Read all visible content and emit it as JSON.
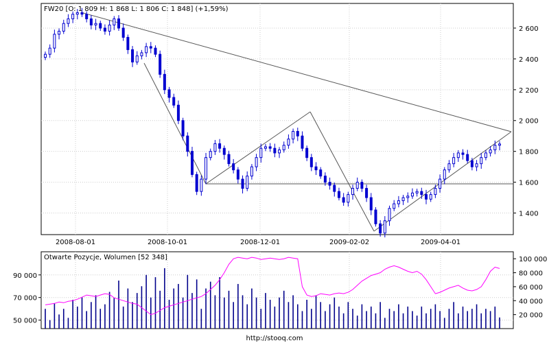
{
  "chart_data": [
    {
      "type": "candlestick",
      "title": "FW20 [O: 1 809  H: 1 868  L: 1 806  C: 1 848] (+1,59%)",
      "x_ticks": [
        "2008-08-01",
        "2008-10-01",
        "2008-12-01",
        "2009-02-02",
        "2009-04-01"
      ],
      "y_ticks": [
        "1 400",
        "1 600",
        "1 800",
        "2 000",
        "2 200",
        "2 400",
        "2 600"
      ],
      "y_tick_values": [
        1400,
        1600,
        1800,
        2000,
        2200,
        2400,
        2600
      ],
      "ylim": [
        1260,
        2760
      ],
      "grid": true,
      "series": [
        {
          "color": "#0000d0",
          "close": [
            2430,
            2470,
            2560,
            2580,
            2630,
            2660,
            2690,
            2700,
            2690,
            2660,
            2620,
            2630,
            2600,
            2580,
            2620,
            2660,
            2600,
            2540,
            2460,
            2380,
            2420,
            2440,
            2480,
            2470,
            2430,
            2300,
            2200,
            2150,
            2100,
            2000,
            1900,
            1800,
            1650,
            1540,
            1620,
            1760,
            1800,
            1850,
            1820,
            1780,
            1720,
            1680,
            1620,
            1560,
            1640,
            1700,
            1760,
            1820,
            1830,
            1820,
            1790,
            1810,
            1840,
            1880,
            1930,
            1900,
            1820,
            1760,
            1700,
            1680,
            1640,
            1600,
            1580,
            1540,
            1500,
            1470,
            1520,
            1560,
            1600,
            1560,
            1500,
            1420,
            1330,
            1270,
            1350,
            1430,
            1460,
            1480,
            1500,
            1510,
            1530,
            1540,
            1520,
            1490,
            1520,
            1560,
            1620,
            1680,
            1720,
            1760,
            1790,
            1780,
            1740,
            1700,
            1720,
            1760,
            1790,
            1810,
            1840,
            1848
          ]
        }
      ]
    },
    {
      "type": "bar+line",
      "title": "Otwarte Pozycje, Wolumen [52 348]",
      "y_left_ticks": [
        "50 000",
        "70 000",
        "90 000"
      ],
      "y_left_values": [
        50000,
        70000,
        90000
      ],
      "y_left_range": [
        42500,
        110500
      ],
      "y_right_ticks": [
        "20 000",
        "40 000",
        "60 000",
        "80 000",
        "100 000"
      ],
      "y_right_values": [
        20000,
        40000,
        60000,
        80000,
        100000
      ],
      "y_right_range": [
        0,
        110000
      ],
      "series": [
        {
          "color": "#00008b",
          "values": [
            60000,
            50000,
            65000,
            55000,
            60000,
            52000,
            68000,
            62000,
            70000,
            58000,
            66000,
            72000,
            60000,
            64000,
            75000,
            70000,
            85000,
            62000,
            78000,
            66000,
            74000,
            80000,
            90000,
            70000,
            88000,
            76000,
            96000,
            68000,
            78000,
            82000,
            70000,
            90000,
            74000,
            86000,
            60000,
            78000,
            84000,
            72000,
            88000,
            70000,
            76000,
            66000,
            82000,
            72000,
            64000,
            78000,
            70000,
            60000,
            74000,
            68000,
            62000,
            70000,
            76000,
            66000,
            72000,
            64000,
            58000,
            68000,
            60000,
            72000,
            66000,
            58000,
            64000,
            70000,
            62000,
            56000,
            66000,
            60000,
            54000,
            64000,
            58000,
            62000,
            56000,
            66000,
            52000,
            60000,
            58000,
            64000,
            56000,
            62000,
            58000,
            54000,
            62000,
            56000,
            60000,
            64000,
            58000,
            52000,
            60000,
            66000,
            56000,
            62000,
            58000,
            60000,
            64000,
            56000,
            60000,
            58000,
            62000,
            52348
          ]
        },
        {
          "color": "#ff00ff",
          "values": [
            34000,
            35000,
            36000,
            38000,
            37000,
            39000,
            40000,
            42000,
            45000,
            48000,
            47000,
            46000,
            48000,
            50000,
            49000,
            44000,
            42000,
            40000,
            38000,
            36000,
            35000,
            30000,
            25000,
            20000,
            22000,
            26000,
            30000,
            32000,
            34000,
            36000,
            38000,
            40000,
            42000,
            44000,
            46000,
            50000,
            56000,
            62000,
            70000,
            80000,
            92000,
            100000,
            102000,
            101000,
            100000,
            102000,
            101000,
            99000,
            100000,
            101000,
            100000,
            99000,
            100000,
            102000,
            101000,
            100000,
            60000,
            48000,
            46000,
            47000,
            50000,
            49000,
            48000,
            50000,
            51000,
            50000,
            52000,
            56000,
            62000,
            68000,
            72000,
            76000,
            78000,
            80000,
            85000,
            88000,
            90000,
            88000,
            85000,
            82000,
            80000,
            82000,
            78000,
            70000,
            60000,
            50000,
            52000,
            55000,
            58000,
            60000,
            62000,
            58000,
            55000,
            54000,
            56000,
            60000,
            70000,
            82000,
            88000,
            86000
          ]
        }
      ]
    }
  ],
  "footer": "http://stooq.com"
}
